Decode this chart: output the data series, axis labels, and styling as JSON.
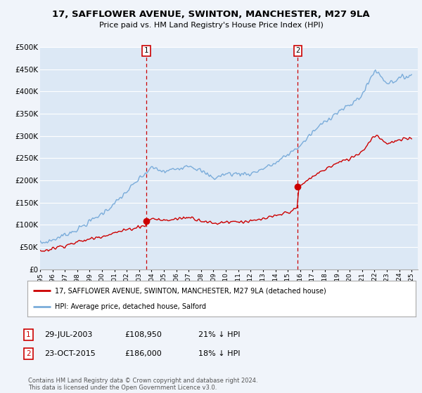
{
  "title": "17, SAFFLOWER AVENUE, SWINTON, MANCHESTER, M27 9LA",
  "subtitle": "Price paid vs. HM Land Registry's House Price Index (HPI)",
  "ylabel_ticks": [
    "£0",
    "£50K",
    "£100K",
    "£150K",
    "£200K",
    "£250K",
    "£300K",
    "£350K",
    "£400K",
    "£450K",
    "£500K"
  ],
  "ytick_vals": [
    0,
    50000,
    100000,
    150000,
    200000,
    250000,
    300000,
    350000,
    400000,
    450000,
    500000
  ],
  "ylim": [
    0,
    500000
  ],
  "xlim_start": 1995.0,
  "xlim_end": 2025.5,
  "hpi_color": "#7aacda",
  "price_color": "#cc0000",
  "marker_color": "#cc0000",
  "vline_color": "#cc0000",
  "background_color": "#f0f4fa",
  "plot_bg_color": "#dce8f5",
  "grid_color": "#ffffff",
  "transaction1_x": 2003.57,
  "transaction1_y": 108950,
  "transaction1_label": "1",
  "transaction1_date": "29-JUL-2003",
  "transaction1_price": "£108,950",
  "transaction1_hpi": "21% ↓ HPI",
  "transaction2_x": 2015.81,
  "transaction2_y": 186000,
  "transaction2_label": "2",
  "transaction2_date": "23-OCT-2015",
  "transaction2_price": "£186,000",
  "transaction2_hpi": "18% ↓ HPI",
  "legend_line1": "17, SAFFLOWER AVENUE, SWINTON, MANCHESTER, M27 9LA (detached house)",
  "legend_line2": "HPI: Average price, detached house, Salford",
  "footnote": "Contains HM Land Registry data © Crown copyright and database right 2024.\nThis data is licensed under the Open Government Licence v3.0.",
  "xtick_years": [
    1995,
    1996,
    1997,
    1998,
    1999,
    2000,
    2001,
    2002,
    2003,
    2004,
    2005,
    2006,
    2007,
    2008,
    2009,
    2010,
    2011,
    2012,
    2013,
    2014,
    2015,
    2016,
    2017,
    2018,
    2019,
    2020,
    2021,
    2022,
    2023,
    2024,
    2025
  ]
}
